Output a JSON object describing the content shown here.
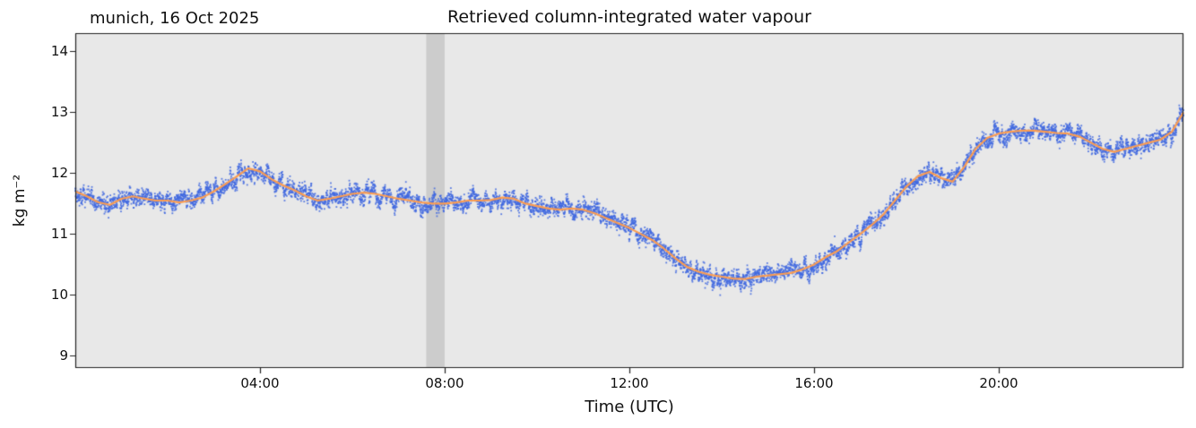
{
  "chart_data": {
    "type": "scatter",
    "title": "Retrieved column-integrated water vapour",
    "annotation": "munich, 16 Oct 2025",
    "xlabel": "Time (UTC)",
    "ylabel": "kg m⁻²",
    "xlim_hours": [
      0,
      24
    ],
    "ylim": [
      8.8,
      14.3
    ],
    "xticks": [
      4,
      8,
      12,
      16,
      20
    ],
    "xtick_labels": [
      "04:00",
      "08:00",
      "12:00",
      "16:00",
      "20:00"
    ],
    "yticks": [
      9,
      10,
      11,
      12,
      13,
      14
    ],
    "ytick_labels": [
      "9",
      "10",
      "11",
      "12",
      "13",
      "14"
    ],
    "grid": false,
    "legend": "none",
    "shaded_band_hours": [
      7.6,
      8.0
    ],
    "colors": {
      "scatter_points": "#4169e1",
      "smoothed_line": "#fb9d52",
      "plot_background": "#e8e8e8",
      "shaded_band": "#cccccc",
      "figure_background": "#ffffff",
      "axis": "#222222",
      "text": "#111111"
    },
    "series": [
      {
        "name": "retrieved water vapour samples",
        "type": "scatter",
        "color": "#4169e1",
        "description": "dense noisy measurement cloud around the smoothed line, vertical spread about ±0.15–0.2 kg m⁻²"
      },
      {
        "name": "smoothed retrieval",
        "type": "line",
        "color": "#fb9d52",
        "x": [
          0,
          0.25,
          0.5,
          0.75,
          1,
          1.25,
          1.5,
          1.75,
          2,
          2.25,
          2.5,
          2.75,
          3,
          3.25,
          3.5,
          3.75,
          4,
          4.25,
          4.5,
          4.75,
          5,
          5.25,
          5.5,
          5.75,
          6,
          6.25,
          6.5,
          6.75,
          7,
          7.25,
          7.5,
          7.75,
          8,
          8.25,
          8.5,
          8.75,
          9,
          9.25,
          9.5,
          9.75,
          10,
          10.25,
          10.5,
          10.75,
          11,
          11.25,
          11.5,
          11.75,
          12,
          12.25,
          12.5,
          12.75,
          13,
          13.25,
          13.5,
          13.75,
          14,
          14.25,
          14.5,
          14.75,
          15,
          15.25,
          15.5,
          15.75,
          16,
          16.25,
          16.5,
          16.75,
          17,
          17.25,
          17.5,
          17.75,
          18,
          18.25,
          18.5,
          18.75,
          19,
          19.25,
          19.5,
          19.75,
          20,
          20.25,
          20.5,
          20.75,
          21,
          21.25,
          21.5,
          21.75,
          22,
          22.25,
          22.5,
          22.75,
          23,
          23.25,
          23.5,
          23.75,
          24
        ],
        "y": [
          11.7,
          11.62,
          11.52,
          11.48,
          11.58,
          11.62,
          11.58,
          11.55,
          11.55,
          11.52,
          11.55,
          11.6,
          11.7,
          11.82,
          11.95,
          12.08,
          12.03,
          11.9,
          11.8,
          11.72,
          11.62,
          11.55,
          11.58,
          11.62,
          11.66,
          11.68,
          11.66,
          11.62,
          11.58,
          11.55,
          11.52,
          11.5,
          11.5,
          11.52,
          11.55,
          11.55,
          11.56,
          11.6,
          11.58,
          11.5,
          11.46,
          11.42,
          11.4,
          11.42,
          11.4,
          11.34,
          11.26,
          11.18,
          11.1,
          11.0,
          10.9,
          10.76,
          10.6,
          10.46,
          10.38,
          10.33,
          10.3,
          10.27,
          10.26,
          10.3,
          10.32,
          10.34,
          10.36,
          10.42,
          10.5,
          10.62,
          10.72,
          10.86,
          11.0,
          11.15,
          11.32,
          11.55,
          11.78,
          11.95,
          12.02,
          11.92,
          11.86,
          12.1,
          12.4,
          12.58,
          12.65,
          12.68,
          12.7,
          12.7,
          12.68,
          12.66,
          12.65,
          12.6,
          12.5,
          12.4,
          12.35,
          12.4,
          12.45,
          12.5,
          12.55,
          12.68,
          13.0
        ]
      }
    ]
  }
}
